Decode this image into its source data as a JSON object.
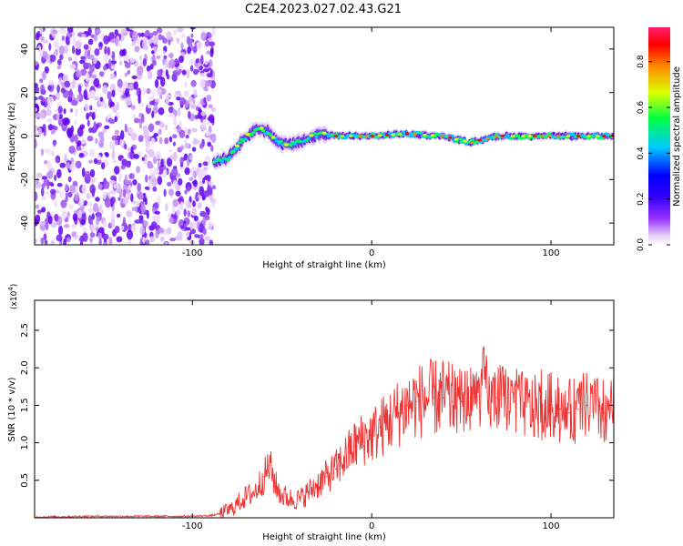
{
  "title": "C2E4.2023.027.02.43.G21",
  "chart_data": [
    {
      "type": "heatmap",
      "xlabel": "Height of straight line (km)",
      "ylabel": "Frequency (Hz)",
      "xlim": [
        -188,
        135
      ],
      "ylim": [
        -50,
        50
      ],
      "x_ticks": [
        -100,
        0,
        100
      ],
      "y_ticks": [
        -40,
        -20,
        0,
        20,
        40
      ],
      "colorbar": {
        "label": "Normalized spectral amplitude",
        "ticks": [
          "0.0",
          "0.2",
          "0.4",
          "0.6",
          "0.8"
        ],
        "range": [
          0,
          0.95
        ],
        "colormap": [
          "#e8d4f5",
          "#5500ee",
          "#0000ff",
          "#00ccff",
          "#00ff44",
          "#ddff00",
          "#ff8800",
          "#ff0000",
          "#ff1e6e"
        ]
      },
      "noise_region_end_km": -88,
      "frequency_trace": [
        {
          "x": -88,
          "y": -12
        },
        {
          "x": -80,
          "y": -10
        },
        {
          "x": -72,
          "y": -2
        },
        {
          "x": -65,
          "y": 3
        },
        {
          "x": -58,
          "y": 2
        },
        {
          "x": -52,
          "y": -3
        },
        {
          "x": -45,
          "y": -4
        },
        {
          "x": -38,
          "y": -2
        },
        {
          "x": -30,
          "y": 1
        },
        {
          "x": -20,
          "y": 0
        },
        {
          "x": 0,
          "y": 0
        },
        {
          "x": 20,
          "y": 1
        },
        {
          "x": 40,
          "y": 0
        },
        {
          "x": 55,
          "y": -3
        },
        {
          "x": 70,
          "y": 0
        },
        {
          "x": 100,
          "y": 0
        },
        {
          "x": 135,
          "y": 0
        }
      ]
    },
    {
      "type": "line",
      "xlabel": "Height of straight line (km)",
      "ylabel": "SNR (10 * v/v)",
      "y_multiplier": "(x10",
      "y_multiplier_exp": "4",
      "y_multiplier_close": ")",
      "xlim": [
        -188,
        135
      ],
      "ylim": [
        0,
        2.9
      ],
      "x_ticks": [
        -100,
        0,
        100
      ],
      "y_ticks": [
        "0.5",
        "1.0",
        "1.5",
        "2.0",
        "2.5"
      ],
      "color": "#ee3333",
      "series": [
        {
          "x": [
            -188,
            -160,
            -130,
            -100,
            -90,
            -85,
            -78,
            -72,
            -65,
            -60,
            -57,
            -53,
            -50,
            -45,
            -40,
            -35,
            -30,
            -25,
            -20,
            -15,
            -10,
            -5,
            0,
            5,
            10,
            15,
            20,
            25,
            30,
            35,
            40,
            45,
            50,
            55,
            60,
            63,
            65,
            70,
            75,
            80,
            85,
            90,
            95,
            100,
            105,
            110,
            115,
            120,
            125,
            130,
            135
          ],
          "y": [
            0.01,
            0.02,
            0.02,
            0.02,
            0.03,
            0.05,
            0.12,
            0.25,
            0.35,
            0.55,
            0.7,
            0.4,
            0.3,
            0.25,
            0.25,
            0.35,
            0.45,
            0.55,
            0.65,
            0.8,
            0.95,
            1.05,
            1.1,
            1.2,
            1.3,
            1.4,
            1.5,
            1.55,
            1.58,
            1.6,
            1.6,
            1.55,
            1.55,
            1.6,
            1.62,
            1.9,
            1.55,
            1.6,
            1.6,
            1.55,
            1.5,
            1.45,
            1.48,
            1.5,
            1.45,
            1.4,
            1.45,
            1.5,
            1.45,
            1.4,
            1.45
          ]
        }
      ]
    }
  ]
}
